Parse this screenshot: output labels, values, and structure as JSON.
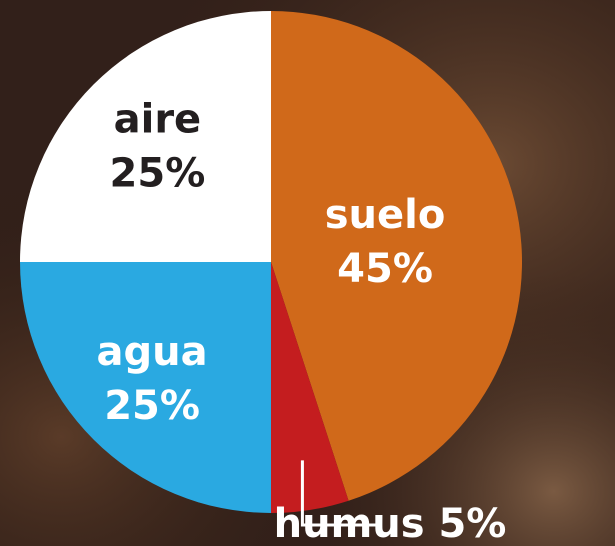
{
  "chart_data": {
    "type": "pie",
    "categories": [
      "suelo",
      "humus",
      "agua",
      "aire"
    ],
    "values": [
      45,
      5,
      25,
      25
    ],
    "value_labels": [
      "45%",
      "5%",
      "25%",
      "25%"
    ],
    "colors": [
      "#d0691a",
      "#c41d1f",
      "#2aa9e1",
      "#ffffff"
    ],
    "label_colors": [
      "#ffffff",
      "#ffffff",
      "#ffffff",
      "#231f20"
    ]
  }
}
